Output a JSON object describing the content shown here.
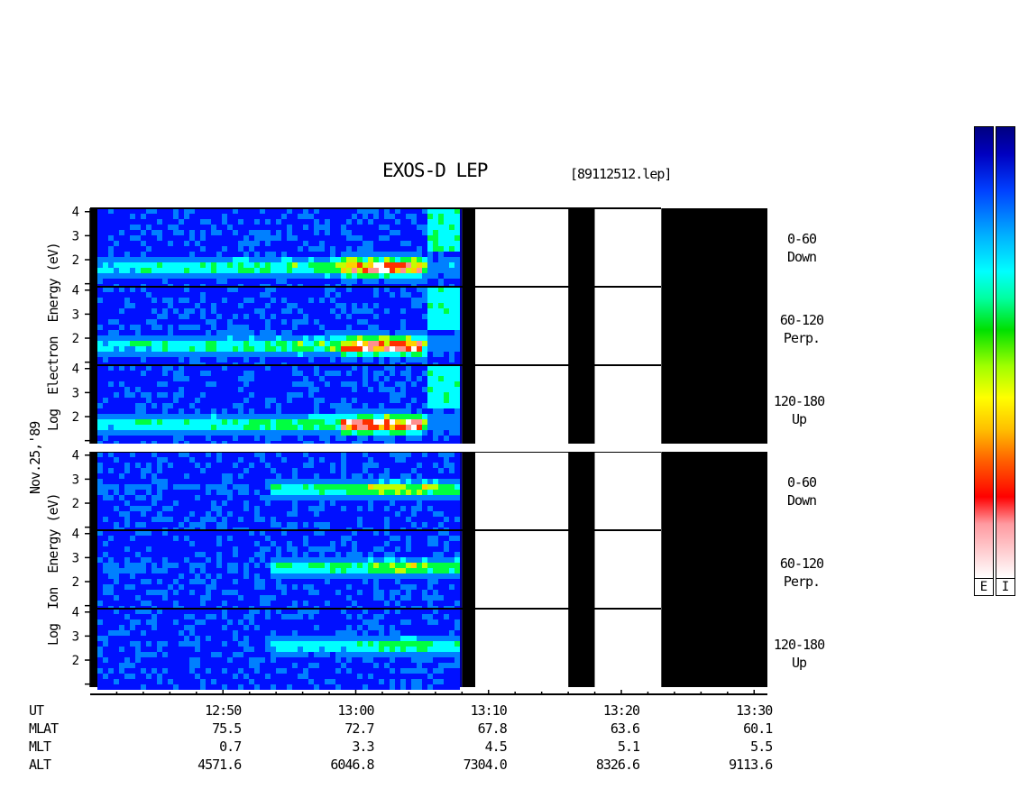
{
  "header": {
    "title": "EXOS-D LEP",
    "filename": "[89112512.lep]"
  },
  "date_label": "Nov.25,'89",
  "electron_block": {
    "label_lines": [
      "Log",
      "Electron",
      "Energy",
      "(eV)"
    ]
  },
  "ion_block": {
    "label_lines": [
      "Log",
      "Ion",
      "Energy",
      "(eV)"
    ]
  },
  "pitch_labels": [
    [
      "0-60",
      "Down"
    ],
    [
      "60-120",
      "Perp."
    ],
    [
      "120-180",
      "Up"
    ],
    [
      "0-60",
      "Down"
    ],
    [
      "60-120",
      "Perp."
    ],
    [
      "120-180",
      "Up"
    ]
  ],
  "colors": {
    "low": "#000080",
    "mid1": "#0000ff",
    "mid2": "#00ffff",
    "mid3": "#00ff00",
    "mid4": "#ffff00",
    "high1": "#ff0000",
    "high2": "#ffffff",
    "no_data": "#000000"
  },
  "colorbars": [
    {
      "label": "E"
    },
    {
      "label": "I"
    }
  ],
  "axis_table": {
    "rows": [
      {
        "name": "UT",
        "values": [
          "12:50",
          "13:00",
          "13:10",
          "13:20",
          "13:30"
        ]
      },
      {
        "name": "MLAT",
        "values": [
          "75.5",
          "72.7",
          "67.8",
          "63.6",
          "60.1"
        ]
      },
      {
        "name": "MLT",
        "values": [
          "0.7",
          "3.3",
          "4.5",
          "5.1",
          "5.5"
        ]
      },
      {
        "name": "ALT",
        "values": [
          "4571.6",
          "6046.8",
          "7304.0",
          "8326.6",
          "9113.6"
        ]
      }
    ]
  },
  "chart_data": {
    "type": "heatmap",
    "title": "EXOS-D LEP",
    "subtitle": "[89112512.lep]",
    "x_axis": {
      "label": "UT",
      "ticks": [
        "12:50",
        "13:00",
        "13:10",
        "13:20",
        "13:30"
      ],
      "range": [
        "12:40",
        "13:31"
      ]
    },
    "y_axis": {
      "label_electron": "Log Electron Energy (eV)",
      "label_ion": "Log Ion Energy (eV)",
      "ticks": [
        1,
        2,
        3,
        4
      ],
      "range": [
        1,
        4.2
      ]
    },
    "panels": [
      {
        "species": "electron",
        "pitch_angle": "0-60",
        "direction": "Down"
      },
      {
        "species": "electron",
        "pitch_angle": "60-120",
        "direction": "Perp."
      },
      {
        "species": "electron",
        "pitch_angle": "120-180",
        "direction": "Up"
      },
      {
        "species": "ion",
        "pitch_angle": "0-60",
        "direction": "Down"
      },
      {
        "species": "ion",
        "pitch_angle": "60-120",
        "direction": "Perp."
      },
      {
        "species": "ion",
        "pitch_angle": "120-180",
        "direction": "Up"
      }
    ],
    "data_coverage": {
      "data_end_ut": "13:08",
      "no_data_intervals": [
        [
          "13:08",
          "13:09"
        ],
        [
          "13:16",
          "13:18"
        ],
        [
          "13:23",
          "13:31"
        ]
      ],
      "blank_intervals": [
        [
          "13:09",
          "13:16"
        ],
        [
          "13:18",
          "13:23"
        ]
      ]
    },
    "electron_peak_band": {
      "log_energy": [
        1.6,
        2.4
      ],
      "peak_ut": [
        "13:02",
        "13:06"
      ]
    },
    "ion_peak_band": {
      "log_energy": [
        2.4,
        3.2
      ],
      "peak_ut": [
        "12:57",
        "13:07"
      ]
    }
  }
}
